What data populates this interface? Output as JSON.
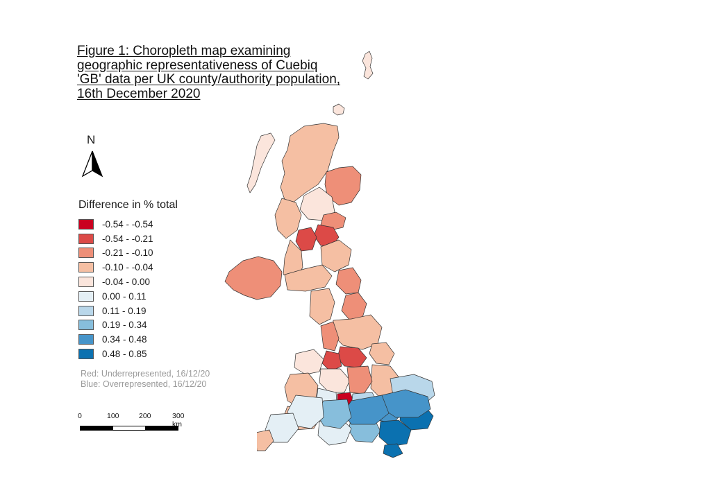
{
  "title": "Figure 1: Choropleth map examining geographic representativeness of Cuebiq 'GB' data per UK county/authority population, 16th December 2020",
  "north_arrow": {
    "label": "N"
  },
  "legend": {
    "title": "Difference in % total",
    "classes": [
      {
        "label": "-0.54 - -0.54",
        "color": "#ca0020"
      },
      {
        "label": "-0.54 - -0.21",
        "color": "#dc4a47"
      },
      {
        "label": "-0.21 - -0.10",
        "color": "#ee8f78"
      },
      {
        "label": "-0.10 - -0.04",
        "color": "#f5bfa3"
      },
      {
        "label": "-0.04 - 0.00",
        "color": "#fbe5dc"
      },
      {
        "label": "0.00 - 0.11",
        "color": "#e4eff5"
      },
      {
        "label": "0.11 - 0.19",
        "color": "#b9d7ea"
      },
      {
        "label": "0.19 - 0.34",
        "color": "#87bedc"
      },
      {
        "label": "0.34 - 0.48",
        "color": "#4694c9"
      },
      {
        "label": "0.48 - 0.85",
        "color": "#0b71b0"
      }
    ]
  },
  "notes": {
    "red": "Red: Underrepresented, 16/12/20",
    "blue": "Blue: Overrepresented, 16/12/20"
  },
  "scale": {
    "ticks": [
      "0",
      "100",
      "200",
      "300 km"
    ]
  }
}
